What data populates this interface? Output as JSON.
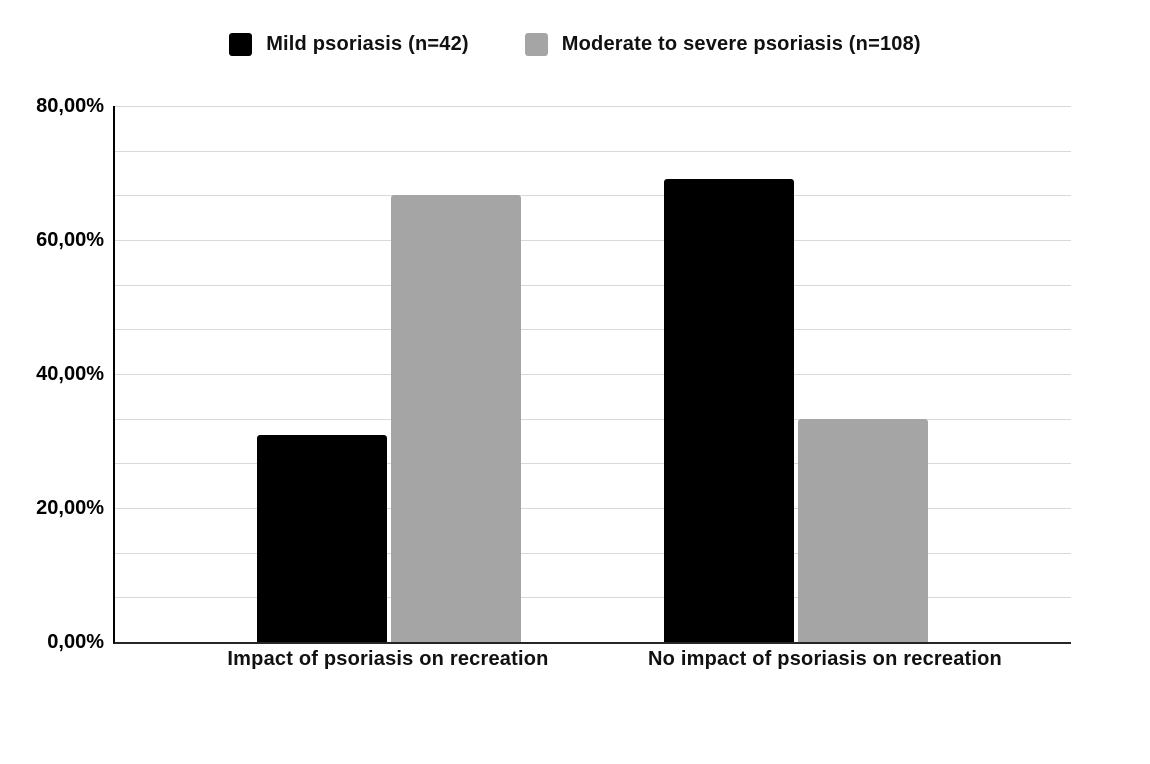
{
  "chart_data": {
    "type": "bar",
    "categories": [
      "Impact of psoriasis on recreation",
      "No impact of psoriasis on recreation"
    ],
    "series": [
      {
        "name": "Mild psoriasis (n=42)",
        "color": "#000000",
        "values": [
          30.95,
          69.05
        ]
      },
      {
        "name": "Moderate to severe psoriasis (n=108)",
        "color": "#a5a5a5",
        "values": [
          66.67,
          33.33
        ]
      }
    ],
    "title": "",
    "xlabel": "",
    "ylabel": "",
    "ylim": [
      0,
      80
    ],
    "ytick_labels_top_to_bottom": [
      "80,00%",
      "60,00%",
      "40,00%",
      "20,00%",
      "0,00%"
    ],
    "ytick_major_step_pct": 20,
    "gridline_step_pct": 6.667,
    "grid": true,
    "legend_position": "top-center",
    "value_format": "percent-comma-decimal"
  },
  "style": {
    "gridline_color": "#d9d9d9",
    "x_axis_color": "#262626",
    "y_axis_color": "#000000",
    "background_color": "#ffffff",
    "text_color": "#111111"
  }
}
